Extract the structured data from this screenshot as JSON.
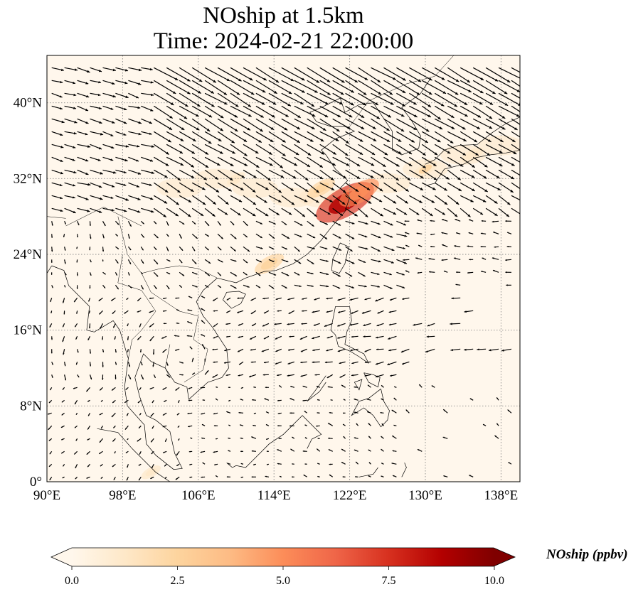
{
  "chart_data": {
    "type": "heatmap",
    "title_line1": "NOship at 1.5km",
    "title_line2": "Time: 2024-02-21 22:00:00",
    "xlim": [
      90,
      140
    ],
    "ylim": [
      0,
      45
    ],
    "x_ticks": [
      90,
      98,
      106,
      114,
      122,
      130,
      138
    ],
    "x_tick_labels": [
      "90°E",
      "98°E",
      "106°E",
      "114°E",
      "122°E",
      "130°E",
      "138°E"
    ],
    "y_ticks": [
      0,
      8,
      16,
      24,
      32,
      40
    ],
    "y_tick_labels": [
      "0°",
      "8°N",
      "16°N",
      "24°N",
      "32°N",
      "40°N"
    ],
    "grid": "dotted",
    "overlay": "wind vector arrows",
    "colorbar": {
      "label": "NOship (ppbv)",
      "min": 0.0,
      "max": 10.0,
      "ticks": [
        0.0,
        2.5,
        5.0,
        7.5,
        10.0
      ],
      "tick_labels": [
        "0.0",
        "2.5",
        "5.0",
        "7.5",
        "10.0"
      ],
      "colormap": "OrRd",
      "extend": "both",
      "colors": [
        "#fff7ec",
        "#fee8c8",
        "#fdd49e",
        "#fdbb84",
        "#fc8d59",
        "#ef6548",
        "#d7301f",
        "#b30000",
        "#7f0000"
      ]
    },
    "hotspots": [
      {
        "lon": 121.5,
        "lat": 29.5,
        "value": 7.5
      },
      {
        "lon": 123.0,
        "lat": 30.5,
        "value": 4.5
      },
      {
        "lon": 119.0,
        "lat": 31.0,
        "value": 2.5
      },
      {
        "lon": 113.5,
        "lat": 23.0,
        "value": 2.8
      },
      {
        "lon": 130.0,
        "lat": 33.0,
        "value": 1.8
      },
      {
        "lon": 135.0,
        "lat": 34.5,
        "value": 1.5
      },
      {
        "lon": 110.0,
        "lat": 32.0,
        "value": 1.0
      },
      {
        "lon": 101.0,
        "lat": 1.0,
        "value": 1.2
      }
    ]
  }
}
